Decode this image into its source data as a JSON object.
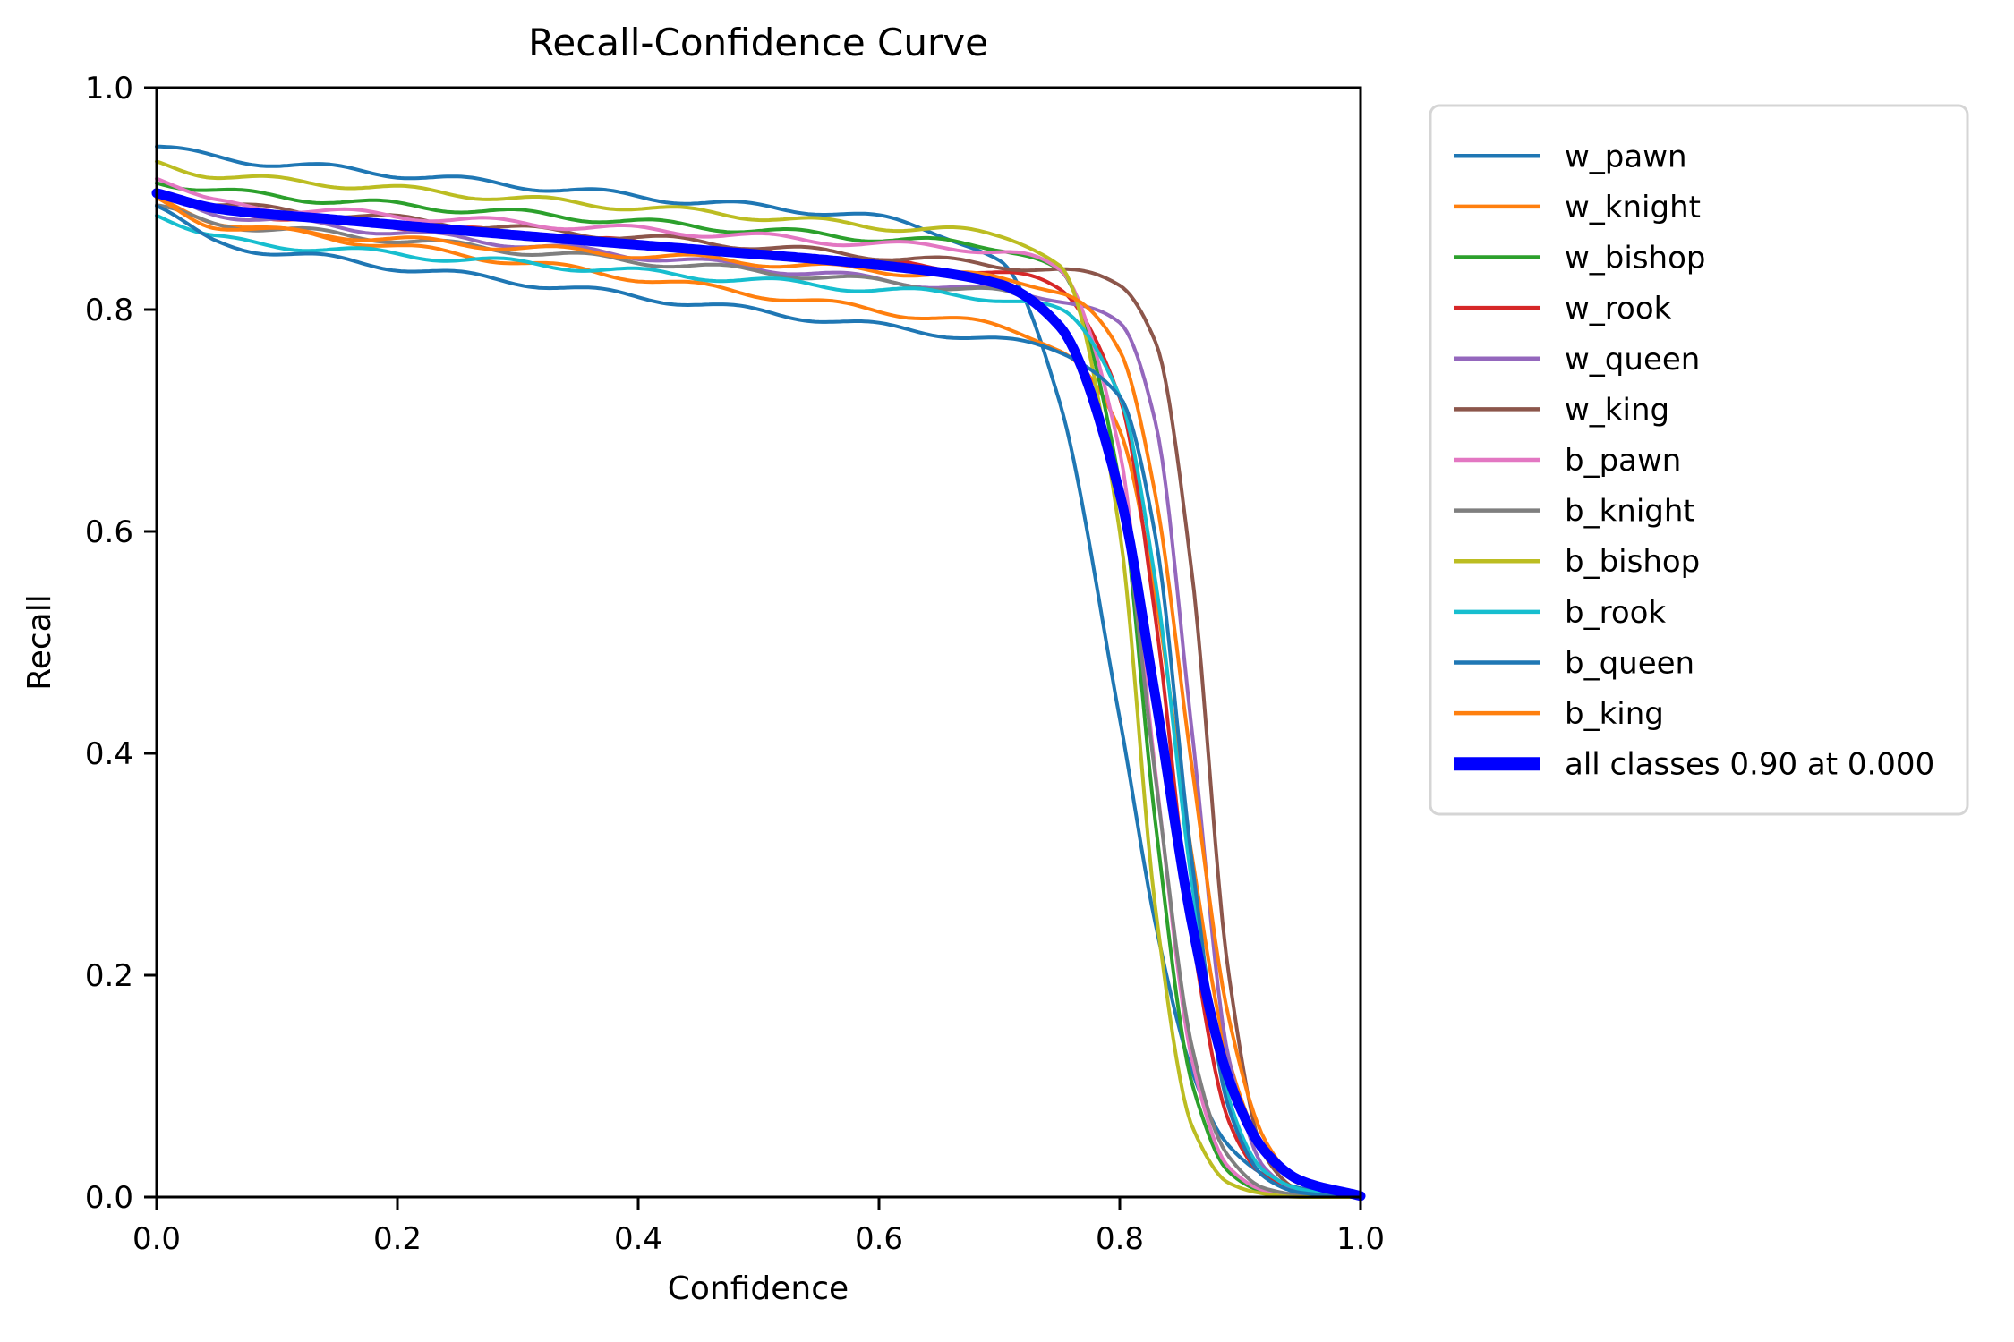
{
  "chart_data": {
    "type": "line",
    "title": "Recall-Confidence Curve",
    "xlabel": "Confidence",
    "ylabel": "Recall",
    "xlim": [
      0.0,
      1.0
    ],
    "ylim": [
      0.0,
      1.0
    ],
    "grid": false,
    "legend_position": "outside-right",
    "x_ticks": [
      "0.0",
      "0.2",
      "0.4",
      "0.6",
      "0.8",
      "1.0"
    ],
    "y_ticks": [
      "0.0",
      "0.2",
      "0.4",
      "0.6",
      "0.8",
      "1.0"
    ],
    "x": [
      0.0,
      0.05,
      0.15,
      0.3,
      0.45,
      0.6,
      0.7,
      0.75,
      0.8,
      0.83,
      0.86,
      0.89,
      0.92,
      0.95,
      1.0
    ],
    "series": [
      {
        "name": "w_pawn",
        "color": "#1f77b4",
        "width": 4,
        "emphasis": false,
        "recall": [
          0.947,
          0.937,
          0.927,
          0.912,
          0.897,
          0.882,
          0.842,
          0.718,
          0.431,
          0.241,
          0.114,
          0.049,
          0.02,
          0.008,
          0.001
        ]
      },
      {
        "name": "w_knight",
        "color": "#ff7f0e",
        "width": 4,
        "emphasis": false,
        "recall": [
          0.898,
          0.88,
          0.864,
          0.843,
          0.821,
          0.799,
          0.784,
          0.765,
          0.688,
          0.541,
          0.31,
          0.124,
          0.04,
          0.012,
          0.001
        ]
      },
      {
        "name": "w_bishop",
        "color": "#2ca02c",
        "width": 4,
        "emphasis": false,
        "recall": [
          0.916,
          0.907,
          0.898,
          0.887,
          0.875,
          0.864,
          0.856,
          0.833,
          0.645,
          0.336,
          0.1,
          0.023,
          0.005,
          0.001,
          0.0
        ]
      },
      {
        "name": "w_rook",
        "color": "#d62728",
        "width": 4,
        "emphasis": false,
        "recall": [
          0.903,
          0.89,
          0.88,
          0.868,
          0.855,
          0.842,
          0.833,
          0.818,
          0.722,
          0.516,
          0.237,
          0.073,
          0.019,
          0.006,
          0.0
        ]
      },
      {
        "name": "w_queen",
        "color": "#9467bd",
        "width": 4,
        "emphasis": false,
        "recall": [
          0.903,
          0.887,
          0.875,
          0.859,
          0.843,
          0.827,
          0.816,
          0.81,
          0.785,
          0.696,
          0.423,
          0.128,
          0.026,
          0.006,
          0.0
        ]
      },
      {
        "name": "w_king",
        "color": "#8c564b",
        "width": 4,
        "emphasis": false,
        "recall": [
          0.908,
          0.895,
          0.886,
          0.873,
          0.861,
          0.848,
          0.84,
          0.835,
          0.822,
          0.773,
          0.561,
          0.202,
          0.039,
          0.006,
          0.0
        ]
      },
      {
        "name": "b_pawn",
        "color": "#e377c2",
        "width": 4,
        "emphasis": false,
        "recall": [
          0.921,
          0.896,
          0.888,
          0.878,
          0.869,
          0.859,
          0.853,
          0.834,
          0.675,
          0.378,
          0.121,
          0.028,
          0.006,
          0.001,
          0.0
        ]
      },
      {
        "name": "b_knight",
        "color": "#7f7f7f",
        "width": 4,
        "emphasis": false,
        "recall": [
          0.892,
          0.878,
          0.868,
          0.853,
          0.839,
          0.825,
          0.815,
          0.791,
          0.632,
          0.373,
          0.138,
          0.038,
          0.008,
          0.002,
          0.0
        ]
      },
      {
        "name": "b_bishop",
        "color": "#bcbd22",
        "width": 4,
        "emphasis": false,
        "recall": [
          0.932,
          0.921,
          0.913,
          0.9,
          0.888,
          0.875,
          0.867,
          0.84,
          0.598,
          0.26,
          0.065,
          0.013,
          0.003,
          0.0,
          0.0
        ]
      },
      {
        "name": "b_rook",
        "color": "#17becf",
        "width": 4,
        "emphasis": false,
        "recall": [
          0.888,
          0.864,
          0.854,
          0.842,
          0.83,
          0.818,
          0.81,
          0.798,
          0.725,
          0.553,
          0.279,
          0.091,
          0.024,
          0.007,
          0.0
        ]
      },
      {
        "name": "b_queen",
        "color": "#1f77b4",
        "width": 4,
        "emphasis": false,
        "recall": [
          0.893,
          0.861,
          0.845,
          0.825,
          0.805,
          0.785,
          0.772,
          0.763,
          0.721,
          0.59,
          0.303,
          0.085,
          0.018,
          0.004,
          0.0
        ]
      },
      {
        "name": "b_king",
        "color": "#ff7f0e",
        "width": 4,
        "emphasis": false,
        "recall": [
          0.898,
          0.876,
          0.867,
          0.856,
          0.846,
          0.835,
          0.828,
          0.817,
          0.76,
          0.632,
          0.39,
          0.162,
          0.051,
          0.015,
          0.001
        ]
      },
      {
        "name": "all classes 0.90 at 0.000",
        "color": "#0000ff",
        "width": 11,
        "emphasis": true,
        "recall": [
          0.905,
          0.891,
          0.881,
          0.867,
          0.854,
          0.84,
          0.823,
          0.785,
          0.634,
          0.448,
          0.246,
          0.108,
          0.042,
          0.015,
          0.001
        ]
      }
    ]
  },
  "legend": {
    "border_color": "#d5d5d5",
    "background": "#ffffff"
  },
  "style": {
    "axis_color": "#000000",
    "text_color": "#000000"
  }
}
